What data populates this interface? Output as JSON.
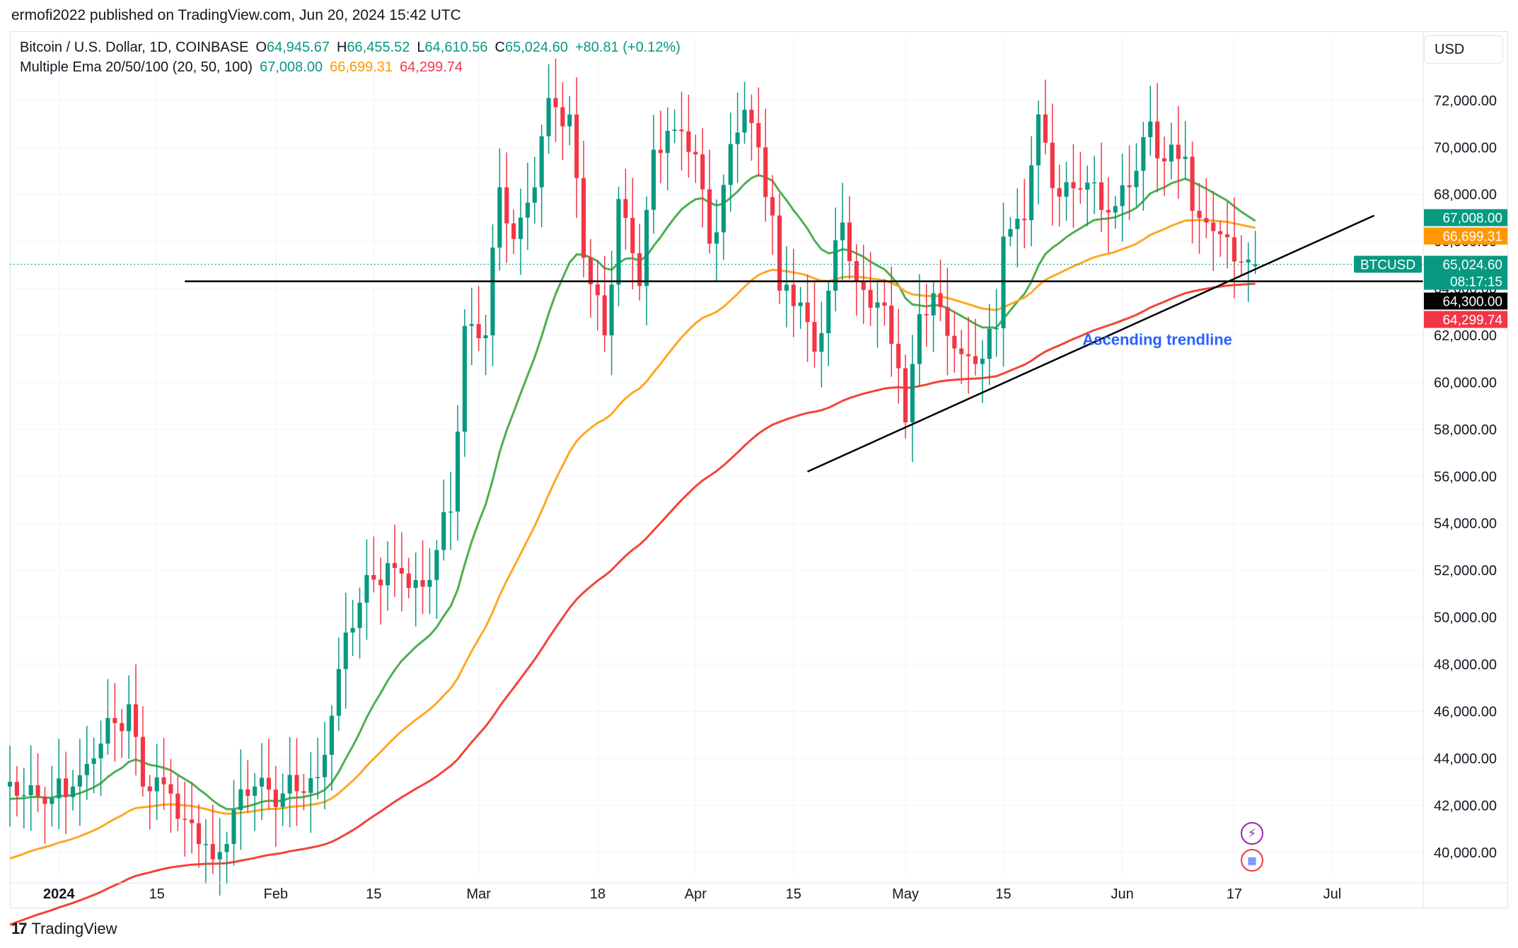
{
  "header": {
    "publisher": "ermofi2022 published on TradingView.com, Jun 20, 2024 15:42 UTC"
  },
  "currency_button": "USD",
  "legend": {
    "symbol": "Bitcoin / U.S. Dollar, 1D, COINBASE",
    "o_label": "O",
    "o_value": "64,945.67",
    "h_label": "H",
    "h_value": "66,455.52",
    "l_label": "L",
    "l_value": "64,610.56",
    "c_label": "C",
    "c_value": "65,024.60",
    "change": "+80.81 (+0.12%)",
    "ema_title": "Multiple Ema 20/50/100 (20, 50, 100)",
    "ema20": "67,008.00",
    "ema50": "66,699.31",
    "ema100": "64,299.74"
  },
  "footer": {
    "brand": "TradingView",
    "logo": "17"
  },
  "colors": {
    "up": "#089981",
    "down": "#f23645",
    "ema20": "#4caf50",
    "ema50": "#ffa726",
    "ema100": "#f44336",
    "grid": "#f0f3fa",
    "axis_text": "#131722",
    "annotation": "#2962ff"
  },
  "chart_data": {
    "type": "candlestick",
    "title": "Bitcoin / U.S. Dollar, 1D, COINBASE",
    "xlabel": "",
    "ylabel": "",
    "ylim": [
      39000,
      73500
    ],
    "y_ticks": [
      40000,
      42000,
      44000,
      46000,
      48000,
      50000,
      52000,
      54000,
      56000,
      58000,
      60000,
      62000,
      64000,
      66000,
      68000,
      70000,
      72000
    ],
    "y_tick_labels": [
      "40,000.00",
      "42,000.00",
      "44,000.00",
      "46,000.00",
      "48,000.00",
      "50,000.00",
      "52,000.00",
      "54,000.00",
      "56,000.00",
      "58,000.00",
      "60,000.00",
      "62,000.00",
      "64,000.00",
      "66,000.00",
      "68,000.00",
      "70,000.00",
      "72,000.00"
    ],
    "x_ticks": [
      {
        "label": "2024",
        "date": "2024-01-01",
        "bold": true
      },
      {
        "label": "15",
        "date": "2024-01-15"
      },
      {
        "label": "Feb",
        "date": "2024-02-01"
      },
      {
        "label": "15",
        "date": "2024-02-15"
      },
      {
        "label": "Mar",
        "date": "2024-03-01"
      },
      {
        "label": "18",
        "date": "2024-03-18"
      },
      {
        "label": "Apr",
        "date": "2024-04-01"
      },
      {
        "label": "15",
        "date": "2024-04-15"
      },
      {
        "label": "May",
        "date": "2024-05-01"
      },
      {
        "label": "15",
        "date": "2024-05-15"
      },
      {
        "label": "Jun",
        "date": "2024-06-01"
      },
      {
        "label": "17",
        "date": "2024-06-17"
      },
      {
        "label": "Jul",
        "date": "2024-07-01"
      }
    ],
    "x_range": [
      "2023-12-25",
      "2024-07-14"
    ],
    "close_keypoints": [
      [
        "2023-12-25",
        43000
      ],
      [
        "2023-12-31",
        42300
      ],
      [
        "2024-01-03",
        42800
      ],
      [
        "2024-01-06",
        44000
      ],
      [
        "2024-01-09",
        45500
      ],
      [
        "2024-01-11",
        46300
      ],
      [
        "2024-01-13",
        42800
      ],
      [
        "2024-01-17",
        42500
      ],
      [
        "2024-01-19",
        41400
      ],
      [
        "2024-01-23",
        39700
      ],
      [
        "2024-01-26",
        41800
      ],
      [
        "2024-01-29",
        42800
      ],
      [
        "2024-02-04",
        42600
      ],
      [
        "2024-02-07",
        43200
      ],
      [
        "2024-02-10",
        47800
      ],
      [
        "2024-02-14",
        51800
      ],
      [
        "2024-02-18",
        52100
      ],
      [
        "2024-02-22",
        51300
      ],
      [
        "2024-02-26",
        54500
      ],
      [
        "2024-02-28",
        62400
      ],
      [
        "2024-03-02",
        62000
      ],
      [
        "2024-03-04",
        68300
      ],
      [
        "2024-03-06",
        66100
      ],
      [
        "2024-03-09",
        68300
      ],
      [
        "2024-03-11",
        72100
      ],
      [
        "2024-03-14",
        71400
      ],
      [
        "2024-03-16",
        65300
      ],
      [
        "2024-03-19",
        62000
      ],
      [
        "2024-03-21",
        67800
      ],
      [
        "2024-03-24",
        64100
      ],
      [
        "2024-03-26",
        69900
      ],
      [
        "2024-03-28",
        70700
      ],
      [
        "2024-04-01",
        69700
      ],
      [
        "2024-04-03",
        65900
      ],
      [
        "2024-04-05",
        68400
      ],
      [
        "2024-04-08",
        71600
      ],
      [
        "2024-04-10",
        70000
      ],
      [
        "2024-04-12",
        67100
      ],
      [
        "2024-04-13",
        63900
      ],
      [
        "2024-04-16",
        63400
      ],
      [
        "2024-04-18",
        61300
      ],
      [
        "2024-04-20",
        63900
      ],
      [
        "2024-04-22",
        66800
      ],
      [
        "2024-04-24",
        64300
      ],
      [
        "2024-04-27",
        63400
      ],
      [
        "2024-04-30",
        60600
      ],
      [
        "2024-05-01",
        58300
      ],
      [
        "2024-05-03",
        62900
      ],
      [
        "2024-05-06",
        63200
      ],
      [
        "2024-05-09",
        61200
      ],
      [
        "2024-05-12",
        61000
      ],
      [
        "2024-05-14",
        62300
      ],
      [
        "2024-05-15",
        66200
      ],
      [
        "2024-05-18",
        66900
      ],
      [
        "2024-05-20",
        71400
      ],
      [
        "2024-05-21",
        70200
      ],
      [
        "2024-05-23",
        67900
      ],
      [
        "2024-05-27",
        68500
      ],
      [
        "2024-05-31",
        67500
      ],
      [
        "2024-06-03",
        69000
      ],
      [
        "2024-06-05",
        71100
      ],
      [
        "2024-06-07",
        69400
      ],
      [
        "2024-06-10",
        69600
      ],
      [
        "2024-06-11",
        67300
      ],
      [
        "2024-06-13",
        66800
      ],
      [
        "2024-06-15",
        66300
      ],
      [
        "2024-06-18",
        65100
      ],
      [
        "2024-06-20",
        65024.6
      ]
    ],
    "last_candle": {
      "date": "2024-06-20",
      "open": 64945.67,
      "high": 66455.52,
      "low": 64610.56,
      "close": 65024.6
    },
    "series": [
      {
        "name": "EMA 20",
        "period": 20,
        "last": 67008.0
      },
      {
        "name": "EMA 50",
        "period": 50,
        "last": 66699.31
      },
      {
        "name": "EMA 100",
        "period": 100,
        "last": 64299.74
      }
    ],
    "horizontal_line": {
      "value": 64300,
      "from": "2024-01-19"
    },
    "trendline": {
      "from": {
        "date": "2024-04-17",
        "value": 56200
      },
      "to": {
        "date": "2024-07-07",
        "value": 67100
      }
    },
    "annotation": {
      "text": "Ascending trendline",
      "date": "2024-06-06",
      "value": 61600
    },
    "price_tags": [
      {
        "text": "67,008.00",
        "value": 67008.0,
        "bg": "#089981",
        "fg": "#ffffff"
      },
      {
        "text": "66,699.31",
        "value": 66699.31,
        "bg": "#ff9800",
        "fg": "#ffffff"
      },
      {
        "text": "65,024.60",
        "value": 65024.6,
        "bg": "#089981",
        "fg": "#ffffff"
      },
      {
        "text": "64,300.00",
        "value": 64300.0,
        "bg": "#000000",
        "fg": "#ffffff"
      },
      {
        "text": "64,299.74",
        "value": 64299.74,
        "bg": "#f23645",
        "fg": "#ffffff"
      }
    ],
    "countdown": "08:17:15",
    "symbol_tag": "BTCUSD"
  }
}
